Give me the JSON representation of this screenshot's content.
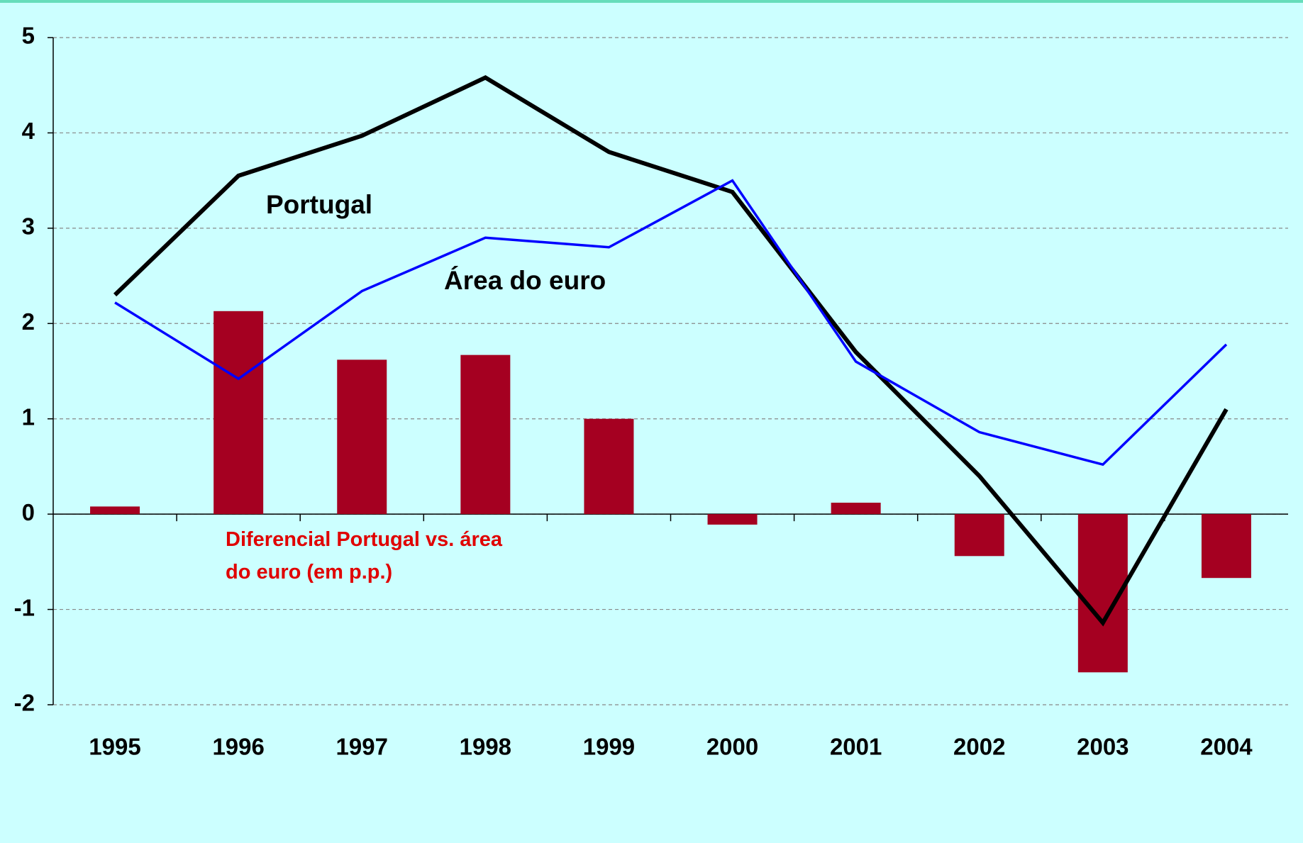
{
  "chart_data": {
    "type": "bar-line",
    "categories": [
      "1995",
      "1996",
      "1997",
      "1998",
      "1999",
      "2000",
      "2001",
      "2002",
      "2003",
      "2004"
    ],
    "series": [
      {
        "name": "Diferencial Portugal vs. área do euro (em p.p.)",
        "type": "bar",
        "color": "#a50021",
        "values": [
          0.08,
          2.13,
          1.62,
          1.67,
          1.0,
          -0.11,
          0.12,
          -0.44,
          -1.66,
          -0.67
        ]
      },
      {
        "name": "Portugal",
        "type": "line",
        "color": "#000000",
        "values": [
          2.3,
          3.55,
          3.97,
          4.58,
          3.8,
          3.38,
          1.7,
          0.4,
          -1.14,
          1.1
        ]
      },
      {
        "name": "Área do euro",
        "type": "line",
        "color": "#0000ff",
        "values": [
          2.22,
          1.42,
          2.34,
          2.9,
          2.8,
          3.5,
          1.6,
          0.86,
          0.52,
          1.78
        ]
      }
    ],
    "ylim": [
      -2,
      5
    ],
    "yticks": [
      -2,
      -1,
      0,
      1,
      2,
      3,
      4,
      5
    ],
    "grid": true
  }
}
